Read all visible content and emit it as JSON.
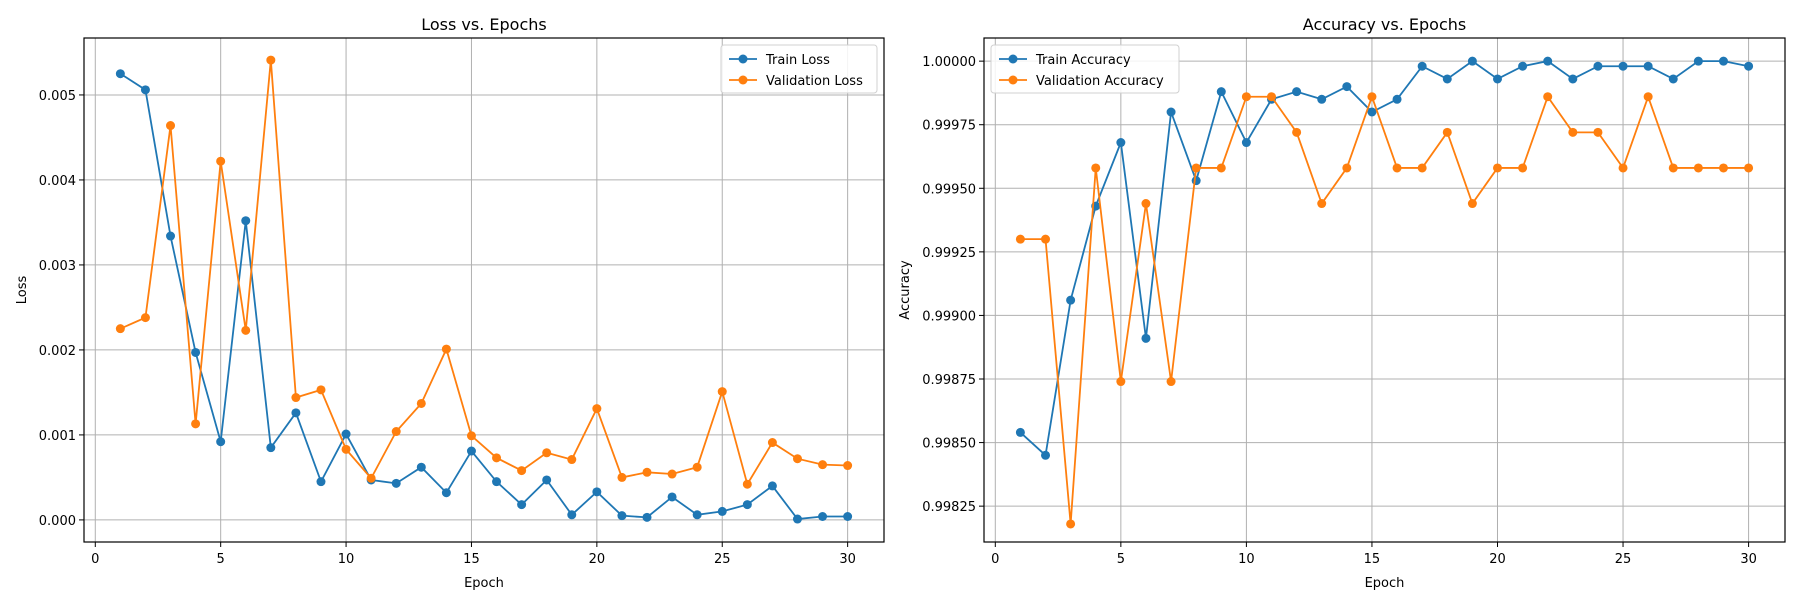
{
  "chart_data": [
    {
      "type": "line",
      "title": "Loss vs. Epochs",
      "xlabel": "Epoch",
      "ylabel": "Loss",
      "xlim": [
        -0.45,
        31.45
      ],
      "ylim": [
        -0.00026,
        0.00567
      ],
      "xticks": [
        0,
        5,
        10,
        15,
        20,
        25,
        30
      ],
      "yticks": [
        0.0,
        0.001,
        0.002,
        0.003,
        0.004,
        0.005
      ],
      "ytick_labels": [
        "0.000",
        "0.001",
        "0.002",
        "0.003",
        "0.004",
        "0.005"
      ],
      "grid": true,
      "legend_position": "top-right",
      "x": [
        1,
        2,
        3,
        4,
        5,
        6,
        7,
        8,
        9,
        10,
        11,
        12,
        13,
        14,
        15,
        16,
        17,
        18,
        19,
        20,
        21,
        22,
        23,
        24,
        25,
        26,
        27,
        28,
        29,
        30
      ],
      "series": [
        {
          "name": "Train Loss",
          "color": "#1f77b4",
          "values": [
            0.00525,
            0.00506,
            0.00334,
            0.00197,
            0.00092,
            0.00352,
            0.00085,
            0.00126,
            0.00045,
            0.00101,
            0.00047,
            0.00043,
            0.00062,
            0.00032,
            0.00081,
            0.00045,
            0.00018,
            0.00047,
            6e-05,
            0.00033,
            5e-05,
            3e-05,
            0.00027,
            6e-05,
            0.0001,
            0.00018,
            0.0004,
            1e-05,
            4e-05,
            4e-05
          ]
        },
        {
          "name": "Validation Loss",
          "color": "#ff7f0e",
          "values": [
            0.00225,
            0.00238,
            0.00464,
            0.00113,
            0.00422,
            0.00223,
            0.00541,
            0.00144,
            0.00153,
            0.00083,
            0.00049,
            0.00104,
            0.00137,
            0.00201,
            0.00099,
            0.00073,
            0.00058,
            0.00079,
            0.00071,
            0.00131,
            0.0005,
            0.00056,
            0.00054,
            0.00062,
            0.00151,
            0.00042,
            0.00091,
            0.00072,
            0.00065,
            0.00064
          ]
        }
      ]
    },
    {
      "type": "line",
      "title": "Accuracy vs. Epochs",
      "xlabel": "Epoch",
      "ylabel": "Accuracy",
      "xlim": [
        -0.45,
        31.45
      ],
      "ylim": [
        0.998109,
        1.000091
      ],
      "xticks": [
        0,
        5,
        10,
        15,
        20,
        25,
        30
      ],
      "yticks": [
        0.99825,
        0.9985,
        0.99875,
        0.999,
        0.99925,
        0.9995,
        0.99975,
        1.0
      ],
      "ytick_labels": [
        "0.99825",
        "0.99850",
        "0.99875",
        "0.99900",
        "0.99925",
        "0.99950",
        "0.99975",
        "1.00000"
      ],
      "grid": true,
      "legend_position": "top-left",
      "x": [
        1,
        2,
        3,
        4,
        5,
        6,
        7,
        8,
        9,
        10,
        11,
        12,
        13,
        14,
        15,
        16,
        17,
        18,
        19,
        20,
        21,
        22,
        23,
        24,
        25,
        26,
        27,
        28,
        29,
        30
      ],
      "series": [
        {
          "name": "Train Accuracy",
          "color": "#1f77b4",
          "values": [
            0.99854,
            0.99845,
            0.99906,
            0.99943,
            0.99968,
            0.99891,
            0.9998,
            0.99953,
            0.99988,
            0.99968,
            0.99985,
            0.99988,
            0.99985,
            0.9999,
            0.9998,
            0.99985,
            0.99998,
            0.99993,
            1.0,
            0.99993,
            0.99998,
            1.0,
            0.99993,
            0.99998,
            0.99998,
            0.99998,
            0.99993,
            1.0,
            1.0,
            0.99998
          ]
        },
        {
          "name": "Validation Accuracy",
          "color": "#ff7f0e",
          "values": [
            0.9993,
            0.9993,
            0.99818,
            0.99958,
            0.99874,
            0.99944,
            0.99874,
            0.99958,
            0.99958,
            0.99986,
            0.99986,
            0.99972,
            0.99944,
            0.99958,
            0.99986,
            0.99958,
            0.99958,
            0.99972,
            0.99944,
            0.99958,
            0.99958,
            0.99986,
            0.99972,
            0.99972,
            0.99958,
            0.99986,
            0.99958,
            0.99958,
            0.99958,
            0.99958
          ]
        }
      ]
    }
  ]
}
